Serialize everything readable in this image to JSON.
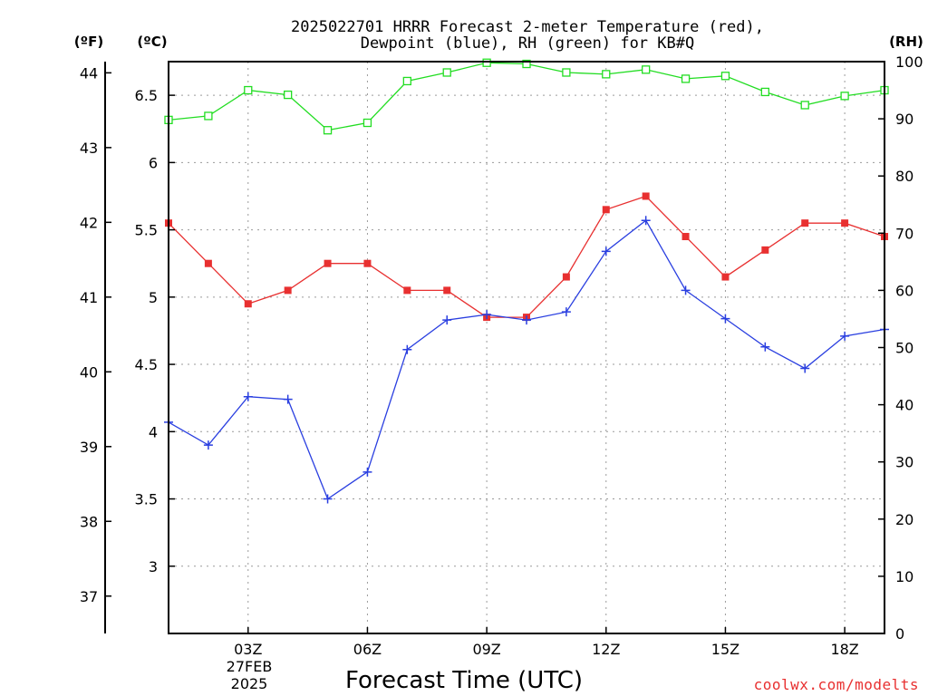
{
  "chart_data": {
    "type": "line",
    "title_line1": "2025022701 HRRR Forecast 2-meter Temperature (red),",
    "title_line2": "Dewpoint (blue), RH (green) for KB#Q",
    "unit_f": "(ºF)",
    "unit_c": "(ºC)",
    "unit_rh": "(RH)",
    "xlabel": "Forecast Time (UTC)",
    "credit": "coolwx.com/modelts",
    "x_hours": [
      1,
      2,
      3,
      4,
      5,
      6,
      7,
      8,
      9,
      10,
      11,
      12,
      13,
      14,
      15,
      16,
      17,
      18,
      19
    ],
    "x_ticks": [
      {
        "hour": 3,
        "label": "03Z"
      },
      {
        "hour": 6,
        "label": "06Z"
      },
      {
        "hour": 9,
        "label": "09Z"
      },
      {
        "hour": 12,
        "label": "12Z"
      },
      {
        "hour": 15,
        "label": "15Z"
      },
      {
        "hour": 18,
        "label": "18Z"
      }
    ],
    "date_label_line1": "27FEB",
    "date_label_line2": "2025",
    "xlim": [
      1,
      19
    ],
    "celsius_range": [
      2.5,
      6.75
    ],
    "celsius_ticks": [
      "3",
      "3.5",
      "4",
      "4.5",
      "5",
      "5.5",
      "6",
      "6.5"
    ],
    "fahrenheit_ticks": [
      "37",
      "38",
      "39",
      "40",
      "41",
      "42",
      "43",
      "44"
    ],
    "rh_range": [
      0,
      100
    ],
    "rh_ticks": [
      "0",
      "10",
      "20",
      "30",
      "40",
      "50",
      "60",
      "70",
      "80",
      "90",
      "100"
    ],
    "grid": true,
    "series": [
      {
        "name": "Temperature",
        "color": "#e83030",
        "axis": "celsius",
        "marker": "filled-square",
        "values": [
          5.55,
          5.25,
          4.95,
          5.05,
          5.25,
          5.25,
          5.05,
          5.05,
          4.85,
          4.85,
          5.15,
          5.65,
          5.75,
          5.45,
          5.15,
          5.35,
          5.55,
          5.55,
          5.45
        ]
      },
      {
        "name": "Dewpoint",
        "color": "#2a3fe0",
        "axis": "celsius",
        "marker": "plus",
        "values": [
          4.07,
          3.9,
          4.26,
          4.24,
          3.5,
          3.7,
          4.61,
          4.83,
          4.87,
          4.83,
          4.89,
          5.34,
          5.57,
          5.05,
          4.84,
          4.63,
          4.47,
          4.71,
          4.76
        ]
      },
      {
        "name": "RH",
        "color": "#22dd22",
        "axis": "rh",
        "marker": "open-square",
        "values": [
          89.8,
          90.5,
          95,
          94.2,
          88,
          89.3,
          96.6,
          98.1,
          99.8,
          99.6,
          98.1,
          97.8,
          98.6,
          97,
          97.5,
          94.7,
          92.4,
          94,
          95
        ]
      }
    ]
  }
}
